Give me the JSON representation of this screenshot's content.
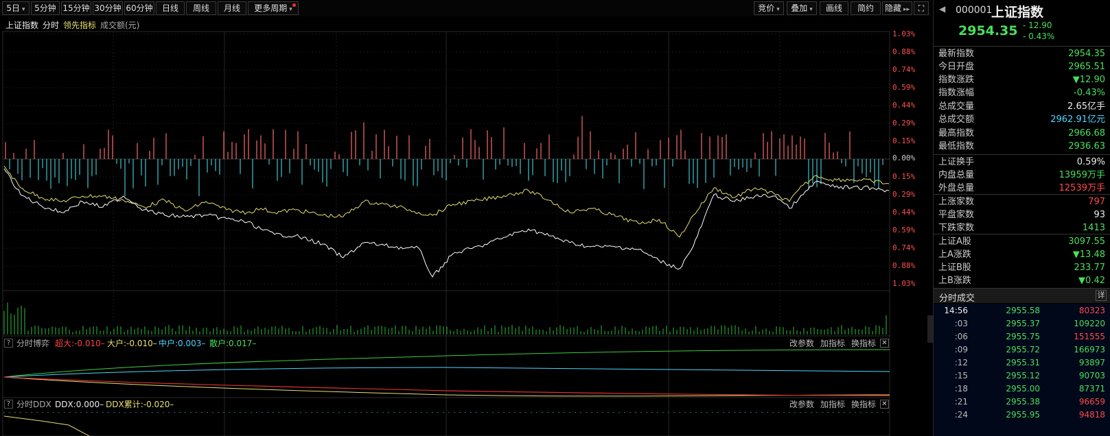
{
  "toolbar": {
    "period_buttons": [
      "5日",
      "5分钟",
      "15分钟",
      "30分钟",
      "60分钟",
      "日线",
      "周线",
      "月线",
      "更多周期"
    ],
    "right_buttons": [
      "竞价",
      "叠加",
      "画线",
      "简约",
      "隐藏",
      "⛶"
    ]
  },
  "legend": {
    "name": "上证指数",
    "mode": "分时",
    "indicator": "领先指标",
    "volume_label": "成交额(元)"
  },
  "pct_labels_up": [
    "1.03%",
    "0.88%",
    "0.74%",
    "0.59%",
    "0.44%",
    "0.29%",
    "0.15%"
  ],
  "pct_zero": "0.00%",
  "pct_labels_down": [
    "0.15%",
    "0.29%",
    "0.44%",
    "0.59%",
    "0.74%",
    "0.88%",
    "1.03%"
  ],
  "panel1": {
    "q": "?",
    "title": "分时博弈",
    "super": "超大:-0.010–",
    "large": "大户:-0.010–",
    "medium": "中户:0.003–",
    "retail": "散户:0.017–",
    "btn_params": "改参数",
    "btn_add": "加指标",
    "btn_switch": "换指标",
    "btn_close": "✕"
  },
  "panel2": {
    "q": "?",
    "title": "分时DDX",
    "ddx": "DDX:0.000–",
    "ddx_sum": "DDX累计:-0.020–",
    "btn_params": "改参数",
    "btn_add": "加指标",
    "btn_switch": "换指标",
    "btn_close": "✕"
  },
  "quote": {
    "arrow": "◀",
    "code": "000001",
    "name": "上证指数",
    "price": "2954.35",
    "change": "- 12.90",
    "change_pct": "- 0.43%",
    "colors": {
      "down": "#49e05a",
      "up": "#ff4a4a",
      "price_line": "#ffffff",
      "lead_line": "#e8e070"
    }
  },
  "stats": [
    {
      "label": "最新指数",
      "value": "2954.35",
      "color": "green"
    },
    {
      "label": "今日开盘",
      "value": "2965.51",
      "color": "green"
    },
    {
      "label": "指数涨跌",
      "value": "▼12.90",
      "color": "green"
    },
    {
      "label": "指数涨幅",
      "value": "-0.43%",
      "color": "green"
    },
    {
      "label": "总成交量",
      "value": "2.65亿手",
      "color": "white"
    },
    {
      "label": "总成交额",
      "value": "2962.91亿元",
      "color": "cyan"
    },
    {
      "label": "最高指数",
      "value": "2966.68",
      "color": "green"
    },
    {
      "label": "最低指数",
      "value": "2936.63",
      "color": "green"
    },
    {
      "label": "上证换手",
      "value": "0.59%",
      "color": "white"
    },
    {
      "label": "内盘总量",
      "value": "13959万手",
      "color": "green"
    },
    {
      "label": "外盘总量",
      "value": "12539万手",
      "color": "red"
    },
    {
      "label": "上涨家数",
      "value": "797",
      "color": "red"
    },
    {
      "label": "平盘家数",
      "value": "93",
      "color": "white"
    },
    {
      "label": "下跌家数",
      "value": "1413",
      "color": "green"
    },
    {
      "label": "上证A股",
      "value": "3097.55",
      "color": "green"
    },
    {
      "label": "上A涨跌",
      "value": "▼13.48",
      "color": "green"
    },
    {
      "label": "上证B股",
      "value": "233.77",
      "color": "green"
    },
    {
      "label": "上B涨跌",
      "value": "▼0.42",
      "color": "green"
    }
  ],
  "ticks_header": {
    "title": "分时成交",
    "detail": "详"
  },
  "ticks": [
    {
      "time": "14:56",
      "price": "2955.58",
      "vol": "80323",
      "dir": "red"
    },
    {
      "time": ":03",
      "price": "2955.37",
      "vol": "109220",
      "dir": "green"
    },
    {
      "time": ":06",
      "price": "2955.75",
      "vol": "151555",
      "dir": "red"
    },
    {
      "time": ":09",
      "price": "2955.72",
      "vol": "166973",
      "dir": "green"
    },
    {
      "time": ":12",
      "price": "2955.31",
      "vol": "93897",
      "dir": "green"
    },
    {
      "time": ":15",
      "price": "2955.12",
      "vol": "90703",
      "dir": "green"
    },
    {
      "time": ":18",
      "price": "2955.00",
      "vol": "87371",
      "dir": "green"
    },
    {
      "time": ":21",
      "price": "2955.38",
      "vol": "96659",
      "dir": "red"
    },
    {
      "time": ":24",
      "price": "2955.95",
      "vol": "94818",
      "dir": "red"
    }
  ]
}
